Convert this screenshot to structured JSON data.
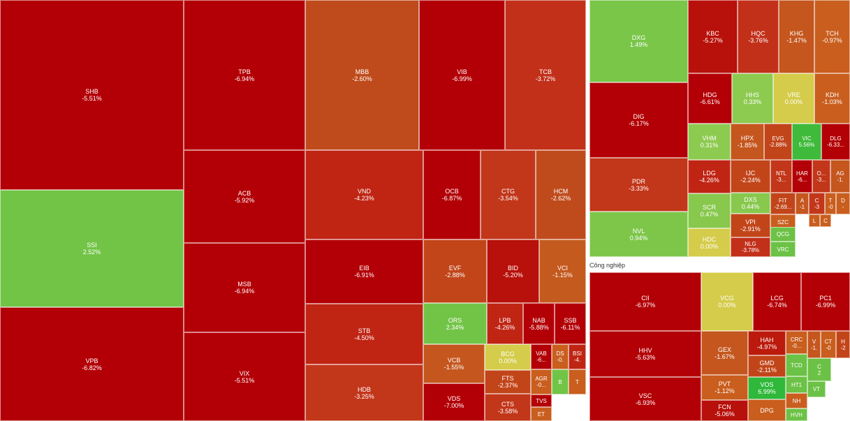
{
  "chart_data": {
    "type": "treemap",
    "colors": {
      "deep_red": "#b30006",
      "red": "#c41a0c",
      "red_orange": "#cf3514",
      "orange": "#bf4b1c",
      "orange_light": "#c9601e",
      "yellow": "#d4cc4a",
      "green_light": "#7dc64a",
      "green": "#6cc246",
      "green_bright": "#3fba3a"
    },
    "sectors": [
      {
        "name": "",
        "stocks": [
          {
            "ticker": "SHB",
            "change": "-5.51%",
            "color": "#b30006"
          },
          {
            "ticker": "SSI",
            "change": "2.52%",
            "color": "#72c447"
          },
          {
            "ticker": "VPB",
            "change": "-6.82%",
            "color": "#b30006"
          },
          {
            "ticker": "TPB",
            "change": "-6.94%",
            "color": "#b30006"
          },
          {
            "ticker": "ACB",
            "change": "-5.92%",
            "color": "#b30006"
          },
          {
            "ticker": "MSB",
            "change": "-6.94%",
            "color": "#b30006"
          },
          {
            "ticker": "VIX",
            "change": "-5.51%",
            "color": "#b30006"
          },
          {
            "ticker": "MBB",
            "change": "-2.60%",
            "color": "#bf4b1c"
          },
          {
            "ticker": "VIB",
            "change": "-6.99%",
            "color": "#b30006"
          },
          {
            "ticker": "TCB",
            "change": "-3.72%",
            "color": "#c2301a"
          },
          {
            "ticker": "VND",
            "change": "-4.23%",
            "color": "#c02514"
          },
          {
            "ticker": "EIB",
            "change": "-6.91%",
            "color": "#b30006"
          },
          {
            "ticker": "STB",
            "change": "-4.50%",
            "color": "#c02514"
          },
          {
            "ticker": "HDB",
            "change": "-3.25%",
            "color": "#c2361a"
          },
          {
            "ticker": "OCB",
            "change": "-6.87%",
            "color": "#b30006"
          },
          {
            "ticker": "CTG",
            "change": "-3.54%",
            "color": "#c2361a"
          },
          {
            "ticker": "HCM",
            "change": "-2.62%",
            "color": "#bf4b1c"
          },
          {
            "ticker": "EVF",
            "change": "-2.88%",
            "color": "#c2451a"
          },
          {
            "ticker": "BID",
            "change": "-5.20%",
            "color": "#b8100a"
          },
          {
            "ticker": "VCI",
            "change": "-1.15%",
            "color": "#c45a1e"
          },
          {
            "ticker": "ORS",
            "change": "2.34%",
            "color": "#72c447"
          },
          {
            "ticker": "LPB",
            "change": "-4.26%",
            "color": "#c02514"
          },
          {
            "ticker": "NAB",
            "change": "-5.88%",
            "color": "#b30006"
          },
          {
            "ticker": "SSB",
            "change": "-6.11%",
            "color": "#b30006"
          },
          {
            "ticker": "VCB",
            "change": "-1.55%",
            "color": "#c4561e"
          },
          {
            "ticker": "BCG",
            "change": "0.00%",
            "color": "#d4cc4a"
          },
          {
            "ticker": "VAB",
            "change": "-6...",
            "color": "#b30006"
          },
          {
            "ticker": "DS",
            "change": "-0.",
            "color": "#c95e1e"
          },
          {
            "ticker": "BSI",
            "change": "-4.",
            "color": "#c02514"
          },
          {
            "ticker": "FTS",
            "change": "-2.37%",
            "color": "#c2451a"
          },
          {
            "ticker": "AGR",
            "change": "-0...",
            "color": "#c95e1e"
          },
          {
            "ticker": "B",
            "change": "",
            "color": "#72c447"
          },
          {
            "ticker": "T",
            "change": "",
            "color": "#c95e1e"
          },
          {
            "ticker": "VDS",
            "change": "-7.00%",
            "color": "#b30006"
          },
          {
            "ticker": "CTS",
            "change": "-3.58%",
            "color": "#c2361a"
          },
          {
            "ticker": "TVS",
            "change": "",
            "color": "#b30006"
          },
          {
            "ticker": "ET",
            "change": "",
            "color": "#c95e1e"
          }
        ]
      },
      {
        "name": "",
        "stocks": [
          {
            "ticker": "DXG",
            "change": "1.49%",
            "color": "#79c649"
          },
          {
            "ticker": "DIG",
            "change": "-6.17%",
            "color": "#b30006"
          },
          {
            "ticker": "PDR",
            "change": "-3.33%",
            "color": "#c2361a"
          },
          {
            "ticker": "NVL",
            "change": "0.94%",
            "color": "#7dc64a"
          },
          {
            "ticker": "KBC",
            "change": "-5.27%",
            "color": "#b8100a"
          },
          {
            "ticker": "HQC",
            "change": "-3.76%",
            "color": "#c2301a"
          },
          {
            "ticker": "KHG",
            "change": "-1.47%",
            "color": "#c4561e"
          },
          {
            "ticker": "TCH",
            "change": "-0.97%",
            "color": "#c95e1e"
          },
          {
            "ticker": "HDG",
            "change": "-6.61%",
            "color": "#b30006"
          },
          {
            "ticker": "HHS",
            "change": "0.33%",
            "color": "#8dca50"
          },
          {
            "ticker": "VRE",
            "change": "0.00%",
            "color": "#d4cc4a"
          },
          {
            "ticker": "KDH",
            "change": "-1.03%",
            "color": "#c95e1e"
          },
          {
            "ticker": "VHM",
            "change": "0.31%",
            "color": "#8dca50"
          },
          {
            "ticker": "HPX",
            "change": "-1.85%",
            "color": "#c4561e"
          },
          {
            "ticker": "EVG",
            "change": "-2.88%",
            "color": "#c2451a"
          },
          {
            "ticker": "VIC",
            "change": "5.56%",
            "color": "#3fba3a"
          },
          {
            "ticker": "DLG",
            "change": "-6.33...",
            "color": "#b30006"
          },
          {
            "ticker": "LDG",
            "change": "-4.26%",
            "color": "#c02514"
          },
          {
            "ticker": "IJC",
            "change": "-2.24%",
            "color": "#c2451a"
          },
          {
            "ticker": "NTL",
            "change": "-3...",
            "color": "#c2361a"
          },
          {
            "ticker": "HAR",
            "change": "-6...",
            "color": "#b30006"
          },
          {
            "ticker": "O...",
            "change": "-3...",
            "color": "#c2361a"
          },
          {
            "ticker": "AG",
            "change": "-1.",
            "color": "#c4561e"
          },
          {
            "ticker": "SCR",
            "change": "0.47%",
            "color": "#87c84d"
          },
          {
            "ticker": "DXS",
            "change": "0.44%",
            "color": "#87c84d"
          },
          {
            "ticker": "FIT",
            "change": "-2.69...",
            "color": "#c2451a"
          },
          {
            "ticker": "A",
            "change": "-1",
            "color": "#c4561e"
          },
          {
            "ticker": "C",
            "change": "-3",
            "color": "#c2361a"
          },
          {
            "ticker": "T",
            "change": "-0",
            "color": "#c95e1e"
          },
          {
            "ticker": "D",
            "change": "-",
            "color": "#c95e1e"
          },
          {
            "ticker": "VPI",
            "change": "-2.91%",
            "color": "#c2451a"
          },
          {
            "ticker": "SZC",
            "change": "",
            "color": "#c95e1e"
          },
          {
            "ticker": "L",
            "change": "",
            "color": "#c95e1e"
          },
          {
            "ticker": "C",
            "change": "",
            "color": "#c95e1e"
          },
          {
            "ticker": "HDC",
            "change": "0.00%",
            "color": "#d4cc4a"
          },
          {
            "ticker": "NLG",
            "change": "-3.78%",
            "color": "#c2301a"
          },
          {
            "ticker": "QCG",
            "change": "",
            "color": "#6cc246"
          },
          {
            "ticker": "VRC",
            "change": "",
            "color": "#6cc246"
          }
        ]
      },
      {
        "name": "Công nghiệp",
        "stocks": [
          {
            "ticker": "CII",
            "change": "-6.97%",
            "color": "#b30006"
          },
          {
            "ticker": "VCG",
            "change": "0.00%",
            "color": "#d4cc4a"
          },
          {
            "ticker": "LCG",
            "change": "-6.74%",
            "color": "#b30006"
          },
          {
            "ticker": "PC1",
            "change": "-6.99%",
            "color": "#b30006"
          },
          {
            "ticker": "HHV",
            "change": "-5.63%",
            "color": "#b30006"
          },
          {
            "ticker": "GEX",
            "change": "-1.67%",
            "color": "#c4561e"
          },
          {
            "ticker": "HAH",
            "change": "-4.97%",
            "color": "#bb1a0c"
          },
          {
            "ticker": "CRC",
            "change": "-0...",
            "color": "#c95e1e"
          },
          {
            "ticker": "V",
            "change": "-1.",
            "color": "#c4561e"
          },
          {
            "ticker": "CT",
            "change": "-0",
            "color": "#c95e1e"
          },
          {
            "ticker": "H",
            "change": "-2",
            "color": "#c2451a"
          },
          {
            "ticker": "GMD",
            "change": "-2.11%",
            "color": "#c2451a"
          },
          {
            "ticker": "TCD",
            "change": "",
            "color": "#6cc246"
          },
          {
            "ticker": "C",
            "change": "2",
            "color": "#6cc246"
          },
          {
            "ticker": "VSC",
            "change": "-6.93%",
            "color": "#b30006"
          },
          {
            "ticker": "PVT",
            "change": "-1.12%",
            "color": "#c95e1e"
          },
          {
            "ticker": "VOS",
            "change": "6.99%",
            "color": "#2fb83a"
          },
          {
            "ticker": "HT1",
            "change": "",
            "color": "#6cc246"
          },
          {
            "ticker": "VT",
            "change": "",
            "color": "#6cc246"
          },
          {
            "ticker": "FCN",
            "change": "-5.06%",
            "color": "#b8100a"
          },
          {
            "ticker": "DPG",
            "change": "",
            "color": "#c95e1e"
          },
          {
            "ticker": "NH",
            "change": "",
            "color": "#c95e1e"
          },
          {
            "ticker": "HVH",
            "change": "",
            "color": "#6cc246"
          }
        ]
      }
    ]
  }
}
